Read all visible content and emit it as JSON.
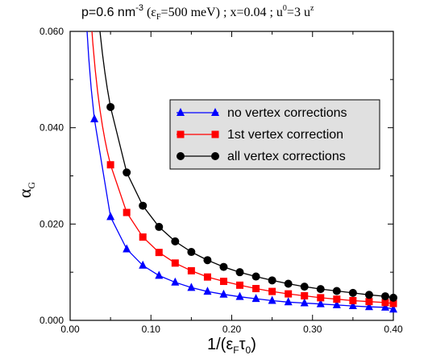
{
  "chart_data": {
    "type": "line",
    "title_parts": {
      "p_prefix": "p=0.6 nm",
      "p_exp": "-3",
      "open_paren": " (ε",
      "eps_sub": "F",
      "mev": "=500 meV)",
      "sep1": " ;  x=0.04  ; u",
      "u0_sup": "0",
      "eq3u": "=3 u",
      "uz_sup": "z"
    },
    "xlabel_parts": {
      "main": "1/(ε",
      "sub1": "F",
      "tau": "τ",
      "sub2": "0",
      "close": ")"
    },
    "ylabel_parts": {
      "main": "α",
      "sub": "G"
    },
    "xlim": [
      0.0,
      0.4
    ],
    "ylim": [
      0.0,
      0.06
    ],
    "x_ticks": [
      0.0,
      0.1,
      0.2,
      0.3,
      0.4
    ],
    "x_tick_labels": [
      "0.00",
      "0.10",
      "0.20",
      "0.30",
      "0.40"
    ],
    "y_ticks": [
      0.0,
      0.02,
      0.04,
      0.06
    ],
    "y_tick_labels": [
      "0.000",
      "0.020",
      "0.040",
      "0.060"
    ],
    "grid": false,
    "legend_position": "upper-right",
    "series": [
      {
        "name": "no vertex corrections",
        "color": "#0000ff",
        "marker": "triangle",
        "x": [
          0.03,
          0.05,
          0.07,
          0.09,
          0.11,
          0.13,
          0.15,
          0.17,
          0.19,
          0.21,
          0.23,
          0.25,
          0.27,
          0.29,
          0.31,
          0.33,
          0.35,
          0.37,
          0.39,
          0.4
        ],
        "y": [
          0.0418,
          0.0215,
          0.0148,
          0.0114,
          0.0093,
          0.0079,
          0.0068,
          0.006,
          0.0054,
          0.0049,
          0.0045,
          0.0041,
          0.0038,
          0.0036,
          0.0034,
          0.0032,
          0.003,
          0.0028,
          0.0027,
          0.0023
        ]
      },
      {
        "name": "1st vertex correction",
        "color": "#ff0000",
        "marker": "square",
        "x": [
          0.05,
          0.07,
          0.09,
          0.11,
          0.13,
          0.15,
          0.17,
          0.19,
          0.21,
          0.23,
          0.25,
          0.27,
          0.29,
          0.31,
          0.33,
          0.35,
          0.37,
          0.39,
          0.4
        ],
        "y": [
          0.0323,
          0.0224,
          0.0173,
          0.0141,
          0.0119,
          0.0103,
          0.009,
          0.0081,
          0.0073,
          0.0066,
          0.006,
          0.0055,
          0.0051,
          0.0047,
          0.0044,
          0.0041,
          0.0039,
          0.0037,
          0.0035
        ]
      },
      {
        "name": "all vertex corrections",
        "color": "#000000",
        "marker": "circle",
        "x": [
          0.05,
          0.07,
          0.09,
          0.11,
          0.13,
          0.15,
          0.17,
          0.19,
          0.21,
          0.23,
          0.25,
          0.27,
          0.29,
          0.31,
          0.33,
          0.35,
          0.37,
          0.39,
          0.4
        ],
        "y": [
          0.0443,
          0.0307,
          0.0238,
          0.0194,
          0.0164,
          0.0142,
          0.0125,
          0.0111,
          0.01,
          0.0091,
          0.0083,
          0.0076,
          0.007,
          0.0065,
          0.0061,
          0.0057,
          0.0053,
          0.005,
          0.0047
        ]
      }
    ]
  }
}
